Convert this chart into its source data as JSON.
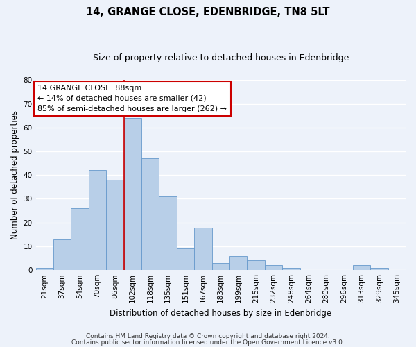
{
  "title": "14, GRANGE CLOSE, EDENBRIDGE, TN8 5LT",
  "subtitle": "Size of property relative to detached houses in Edenbridge",
  "xlabel": "Distribution of detached houses by size in Edenbridge",
  "ylabel": "Number of detached properties",
  "bin_labels": [
    "21sqm",
    "37sqm",
    "54sqm",
    "70sqm",
    "86sqm",
    "102sqm",
    "118sqm",
    "135sqm",
    "151sqm",
    "167sqm",
    "183sqm",
    "199sqm",
    "215sqm",
    "232sqm",
    "248sqm",
    "264sqm",
    "280sqm",
    "296sqm",
    "313sqm",
    "329sqm",
    "345sqm"
  ],
  "bar_values": [
    1,
    13,
    26,
    42,
    38,
    64,
    47,
    31,
    9,
    18,
    3,
    6,
    4,
    2,
    1,
    0,
    0,
    0,
    2,
    1,
    0
  ],
  "bar_color": "#b8cfe8",
  "bar_edge_color": "#6699cc",
  "ylim": [
    0,
    80
  ],
  "yticks": [
    0,
    10,
    20,
    30,
    40,
    50,
    60,
    70,
    80
  ],
  "annotation_line1": "14 GRANGE CLOSE: 88sqm",
  "annotation_line2": "← 14% of detached houses are smaller (42)",
  "annotation_line3": "85% of semi-detached houses are larger (262) →",
  "annotation_box_color": "#ffffff",
  "annotation_box_edge_color": "#cc0000",
  "vline_color": "#cc0000",
  "vline_x_index": 4.5,
  "footnote1": "Contains HM Land Registry data © Crown copyright and database right 2024.",
  "footnote2": "Contains public sector information licensed under the Open Government Licence v3.0.",
  "background_color": "#edf2fa",
  "grid_color": "#ffffff",
  "title_fontsize": 10.5,
  "subtitle_fontsize": 9,
  "axis_label_fontsize": 8.5,
  "tick_fontsize": 7.5,
  "annotation_fontsize": 8,
  "footnote_fontsize": 6.5
}
